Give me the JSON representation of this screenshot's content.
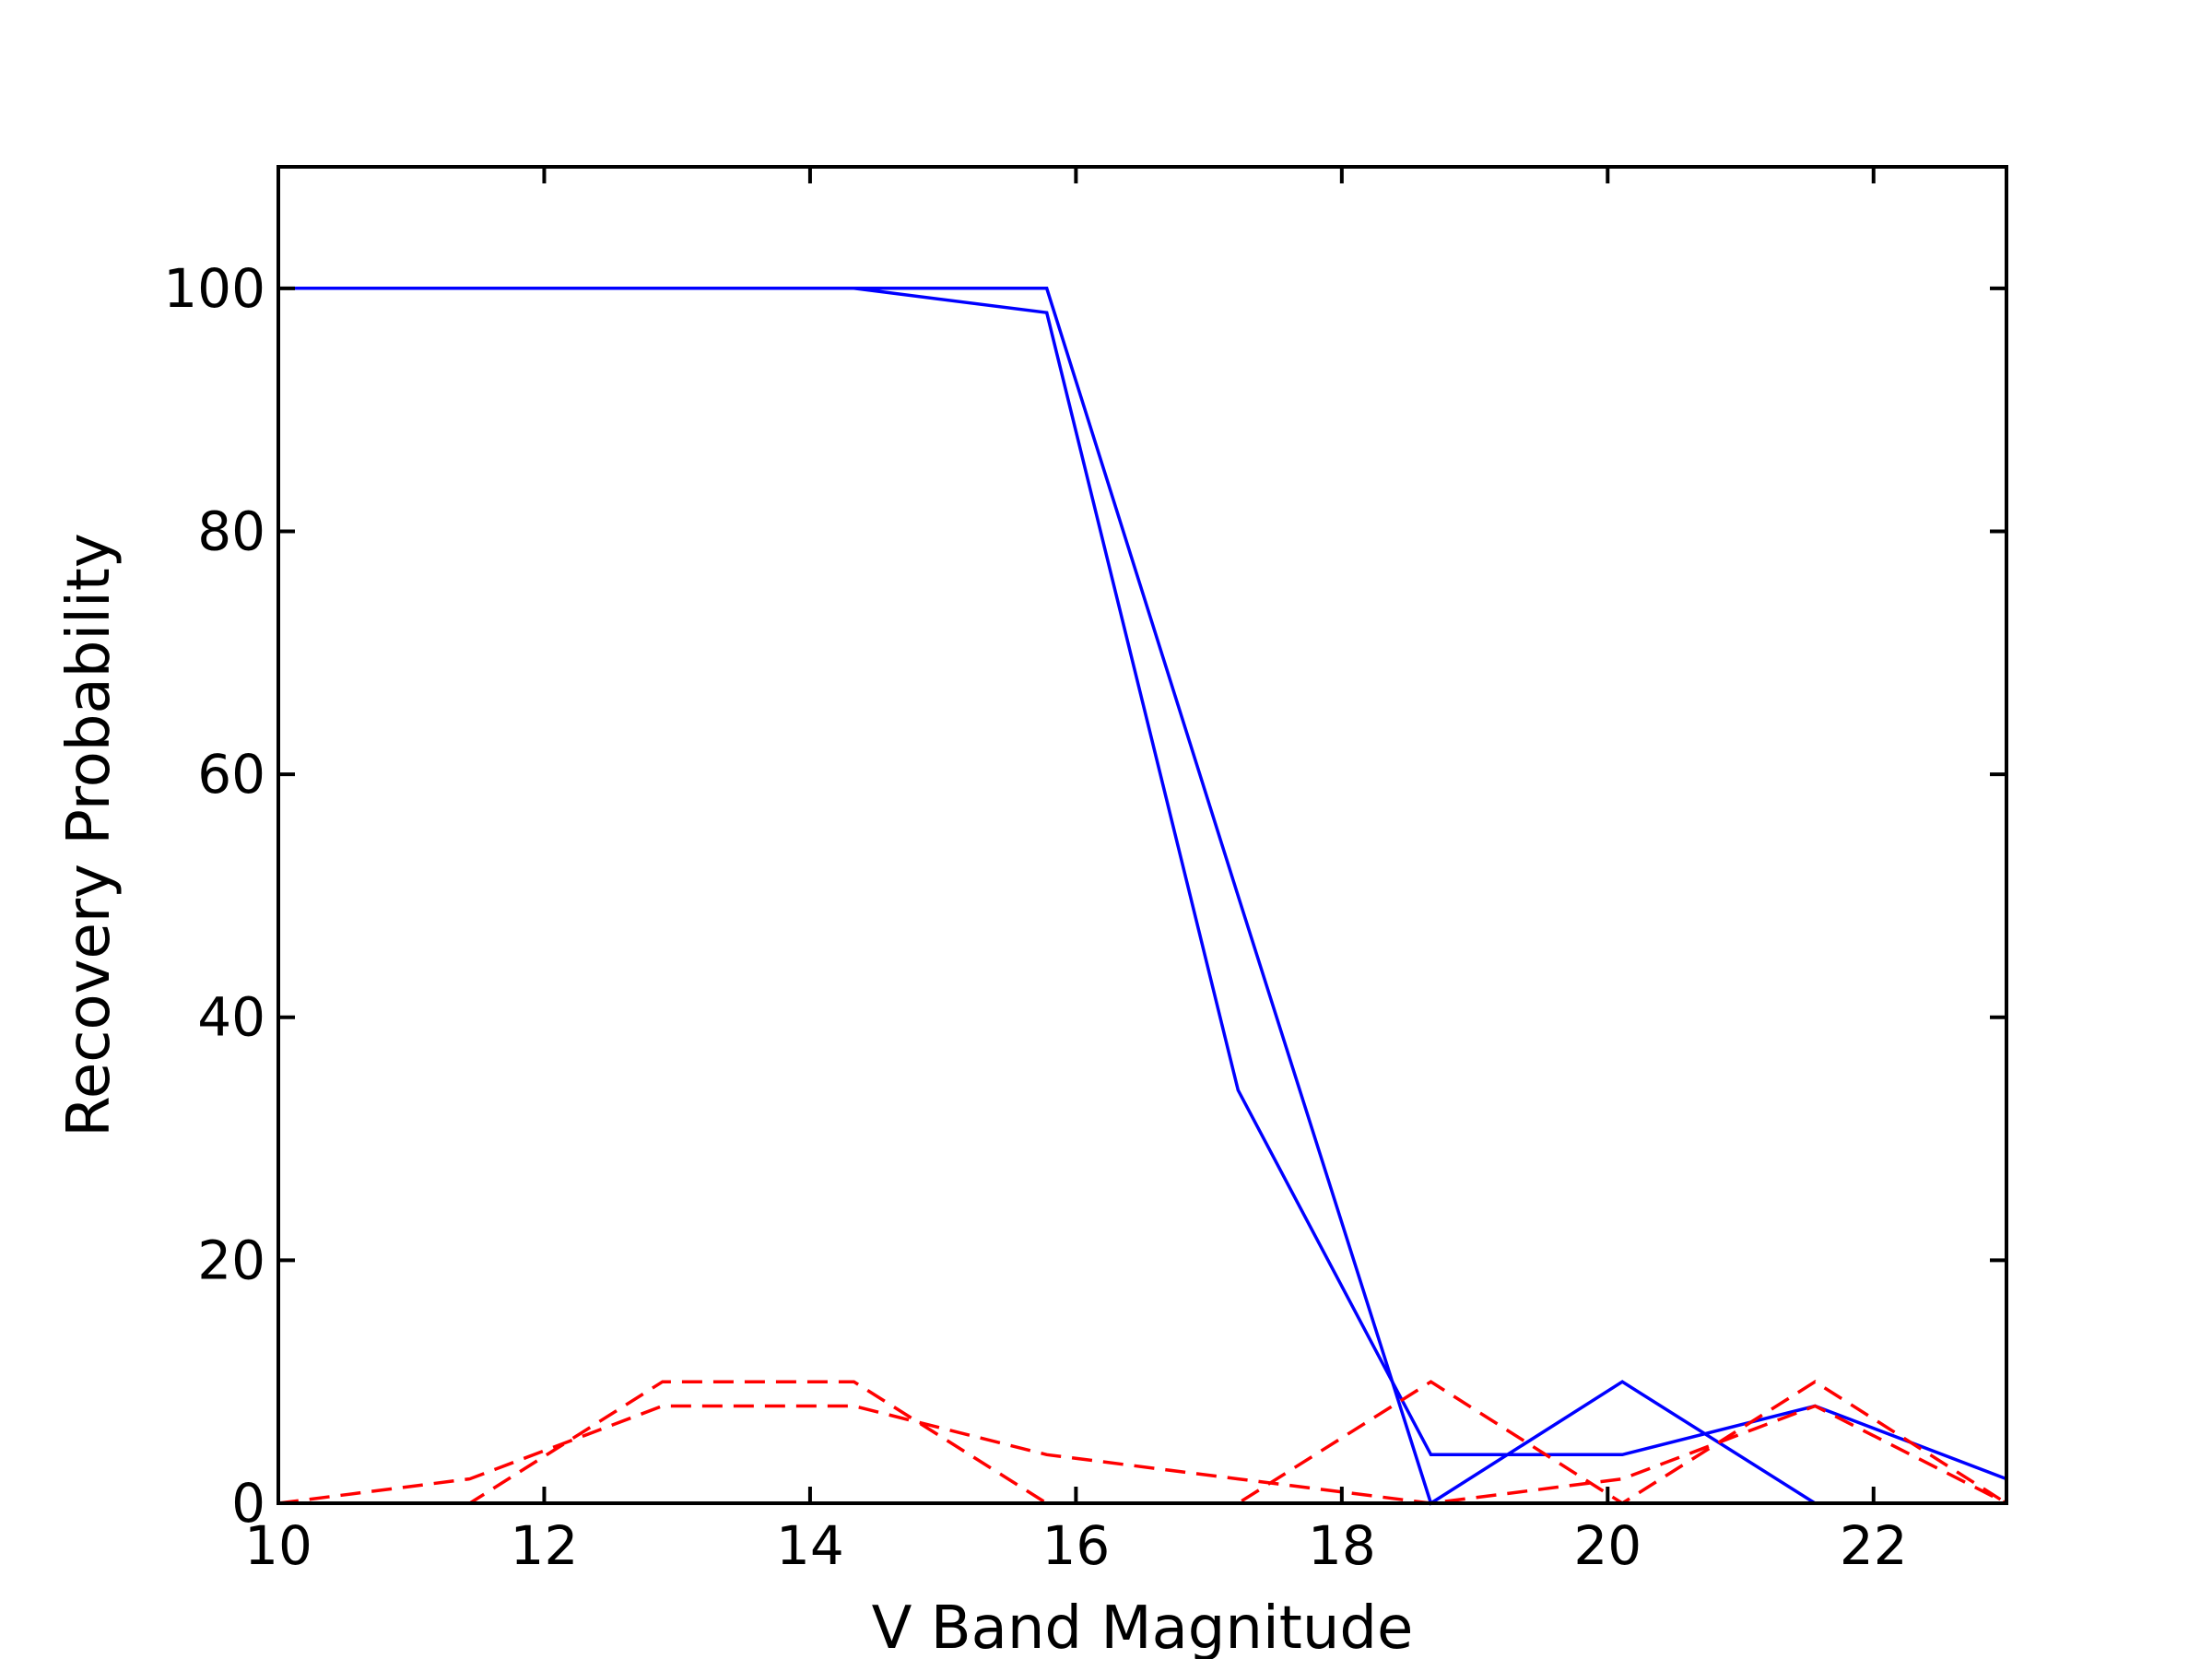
{
  "chart_data": {
    "type": "line",
    "title": "",
    "xlabel": "V Band Magnitude",
    "ylabel": "Recovery Probability",
    "xlim": [
      10,
      23
    ],
    "ylim": [
      0,
      110
    ],
    "xticks": [
      10,
      12,
      14,
      16,
      18,
      20,
      22
    ],
    "yticks": [
      0,
      20,
      40,
      60,
      80,
      100
    ],
    "xtick_labels": [
      "10",
      "12",
      "14",
      "16",
      "18",
      "20",
      "22"
    ],
    "ytick_labels": [
      "0",
      "20",
      "40",
      "60",
      "80",
      "100"
    ],
    "grid": false,
    "legend": false,
    "series": [
      {
        "color": "#0000ff",
        "style": "solid",
        "x": [
          10,
          11.44,
          12.89,
          14.33,
          15.78,
          17.22,
          18.67,
          20.11,
          21.56,
          23
        ],
        "y": [
          100,
          100,
          100,
          100,
          100,
          50,
          0,
          10,
          0,
          0
        ]
      },
      {
        "color": "#0000ff",
        "style": "solid",
        "x": [
          10,
          11.44,
          12.89,
          14.33,
          15.78,
          17.22,
          18.67,
          20.11,
          21.56,
          23
        ],
        "y": [
          100,
          100,
          100,
          100,
          98,
          34,
          4,
          4,
          8,
          2
        ]
      },
      {
        "color": "#ff0000",
        "style": "dashed",
        "x": [
          10,
          11.44,
          12.89,
          14.33,
          15.78,
          17.22,
          18.67,
          20.11,
          21.56,
          23
        ],
        "y": [
          0,
          0,
          10,
          10,
          0,
          0,
          10,
          0,
          10,
          0
        ]
      },
      {
        "color": "#ff0000",
        "style": "dashed",
        "x": [
          10,
          11.44,
          12.89,
          14.33,
          15.78,
          17.22,
          18.67,
          20.11,
          21.56,
          23
        ],
        "y": [
          0,
          2,
          8,
          8,
          4,
          2,
          0,
          2,
          8,
          0
        ]
      }
    ]
  }
}
